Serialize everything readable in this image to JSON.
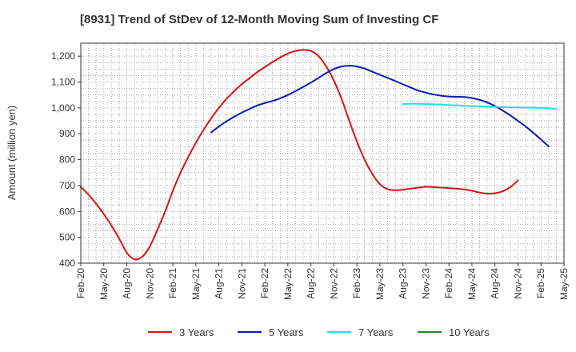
{
  "chart_data": {
    "type": "line",
    "title": "[8931]  Trend of StDev of 12-Month Moving Sum of Investing CF",
    "ylabel": "Amount (million yen)",
    "xlabel": "",
    "ylim": [
      400,
      1250
    ],
    "yticks": [
      400,
      500,
      600,
      700,
      800,
      900,
      1000,
      1100,
      1200
    ],
    "ytick_labels": [
      "400",
      "500",
      "600",
      "700",
      "800",
      "900",
      "1,000",
      "1,100",
      "1,200"
    ],
    "xticks": [
      "Feb-20",
      "May-20",
      "Aug-20",
      "Nov-20",
      "Feb-21",
      "May-21",
      "Aug-21",
      "Nov-21",
      "Feb-22",
      "May-22",
      "Aug-22",
      "Nov-22",
      "Feb-23",
      "May-23",
      "Aug-23",
      "Nov-23",
      "Feb-24",
      "May-24",
      "Aug-24",
      "Nov-24",
      "Feb-25",
      "May-25"
    ],
    "grid": true,
    "legend_position": "bottom",
    "series": [
      {
        "name": "3 Years",
        "color": "#dd1111",
        "start": "Feb-20",
        "values": [
          695,
          665,
          630,
          590,
          545,
          495,
          440,
          415,
          425,
          465,
          530,
          600,
          680,
          750,
          810,
          865,
          915,
          960,
          1000,
          1035,
          1065,
          1092,
          1115,
          1138,
          1158,
          1177,
          1195,
          1210,
          1220,
          1224,
          1220,
          1200,
          1160,
          1105,
          1035,
          950,
          870,
          800,
          745,
          705,
          686,
          682,
          684,
          688,
          692,
          695,
          694,
          692,
          690,
          688,
          685,
          680,
          673,
          669,
          670,
          678,
          694,
          720
        ]
      },
      {
        "name": "5 Years",
        "color": "#0a1ab8",
        "start": "Jul-21",
        "values": [
          905,
          928,
          948,
          966,
          982,
          996,
          1009,
          1019,
          1027,
          1037,
          1050,
          1065,
          1081,
          1098,
          1116,
          1135,
          1150,
          1160,
          1163,
          1160,
          1152,
          1140,
          1128,
          1116,
          1104,
          1091,
          1079,
          1067,
          1059,
          1052,
          1047,
          1044,
          1043,
          1042,
          1038,
          1031,
          1021,
          1007,
          990,
          971,
          950,
          928,
          904,
          878,
          851
        ]
      },
      {
        "name": "7 Years",
        "color": "#22dddd",
        "start": "Aug-23",
        "values": [
          1015,
          1016,
          1016,
          1015,
          1014,
          1013,
          1011,
          1010,
          1008,
          1007,
          1006,
          1005,
          1004,
          1003,
          1002,
          1002,
          1001,
          1001,
          1000,
          999,
          996
        ]
      },
      {
        "name": "10 Years",
        "color": "#228822",
        "start": "",
        "values": []
      }
    ]
  }
}
